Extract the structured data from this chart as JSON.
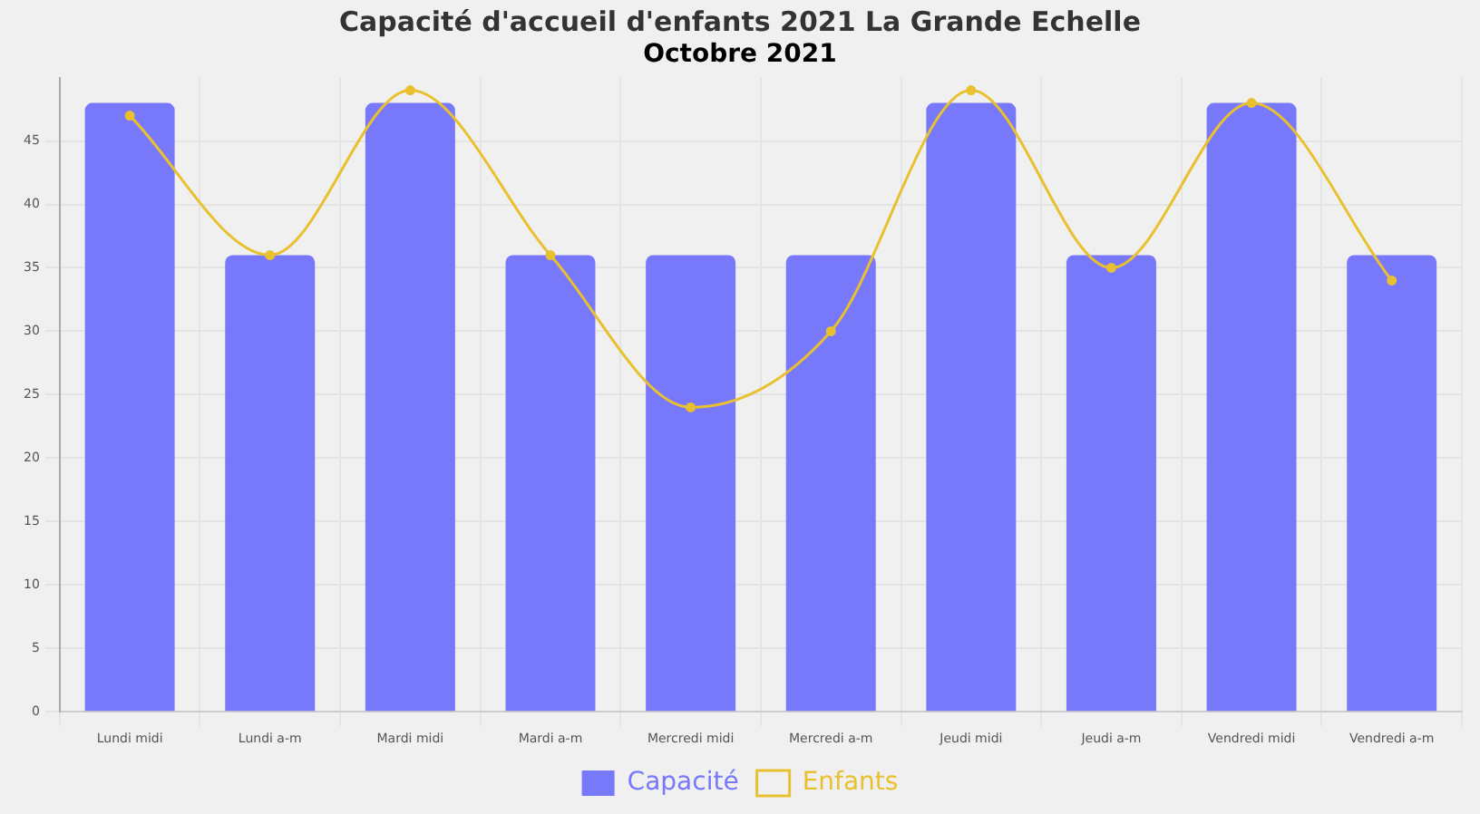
{
  "chart_data": {
    "type": "bar",
    "title": "Capacité d'accueil d'enfants 2021 La Grande Echelle",
    "subtitle": "Octobre 2021",
    "categories": [
      "Lundi midi",
      "Lundi a-m",
      "Mardi midi",
      "Mardi a-m",
      "Mercredi midi",
      "Mercredi a-m",
      "Jeudi midi",
      "Jeudi a-m",
      "Vendredi midi",
      "Vendredi a-m"
    ],
    "series": [
      {
        "name": "Capacité",
        "color": "#7878fa",
        "values": [
          48,
          36,
          48,
          36,
          36,
          36,
          48,
          36,
          48,
          36
        ]
      },
      {
        "name": "Enfants",
        "type": "line",
        "color": "#e8c030",
        "values": [
          47,
          36,
          49,
          36,
          24,
          30,
          49,
          35,
          48,
          34
        ]
      }
    ],
    "ylim": [
      0,
      50
    ],
    "yticks": [
      0,
      5,
      10,
      15,
      20,
      25,
      30,
      35,
      40,
      45
    ],
    "grid": true,
    "legend": "bottom",
    "marker": "circle",
    "line_style": "solid"
  }
}
